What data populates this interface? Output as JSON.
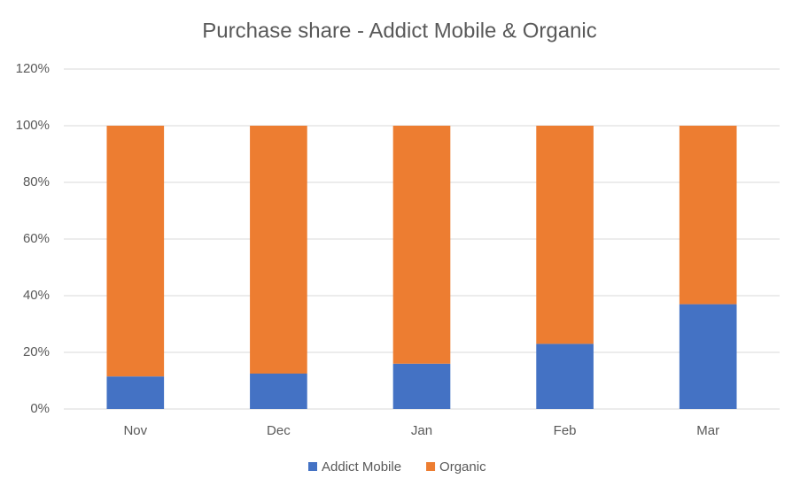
{
  "chart_data": {
    "type": "stacked_bar",
    "title": "Purchase share - Addict Mobile & Organic",
    "categories": [
      "Nov",
      "Dec",
      "Jan",
      "Feb",
      "Mar"
    ],
    "series": [
      {
        "name": "Addict Mobile",
        "color": "#4472c4",
        "values": [
          11.5,
          12.5,
          16,
          23,
          37
        ]
      },
      {
        "name": "Organic",
        "color": "#ed7d31",
        "values": [
          88.5,
          87.5,
          84,
          77,
          63
        ]
      }
    ],
    "ylim": [
      0,
      120
    ],
    "yticks": [
      {
        "value": 0,
        "label": "0%"
      },
      {
        "value": 20,
        "label": "20%"
      },
      {
        "value": 40,
        "label": "40%"
      },
      {
        "value": 60,
        "label": "60%"
      },
      {
        "value": 80,
        "label": "80%"
      },
      {
        "value": 100,
        "label": "100%"
      },
      {
        "value": 120,
        "label": "120%"
      }
    ],
    "grid": true,
    "legend": "bottom"
  }
}
